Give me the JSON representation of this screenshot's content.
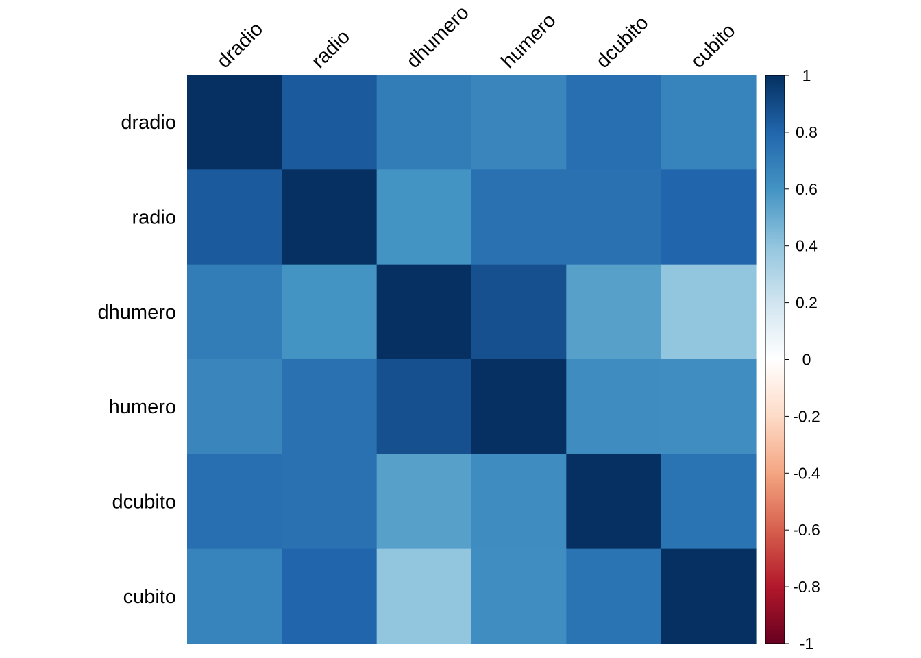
{
  "chart_data": {
    "type": "heatmap",
    "title": "",
    "variables": [
      "dradio",
      "radio",
      "dhumero",
      "humero",
      "dcubito",
      "cubito"
    ],
    "matrix": [
      [
        1.0,
        0.84,
        0.7,
        0.66,
        0.76,
        0.67
      ],
      [
        0.84,
        1.0,
        0.6,
        0.75,
        0.75,
        0.8
      ],
      [
        0.7,
        0.6,
        1.0,
        0.88,
        0.55,
        0.4
      ],
      [
        0.66,
        0.75,
        0.88,
        1.0,
        0.63,
        0.62
      ],
      [
        0.76,
        0.75,
        0.55,
        0.63,
        1.0,
        0.74
      ],
      [
        0.67,
        0.8,
        0.4,
        0.62,
        0.74,
        1.0
      ]
    ],
    "colorbar": {
      "range": [
        -1,
        1
      ],
      "ticks": [
        1,
        0.8,
        0.6,
        0.4,
        0.2,
        0,
        -0.2,
        -0.4,
        -0.6,
        -0.8,
        -1
      ],
      "tick_labels": [
        "1",
        "0.8",
        "0.6",
        "0.4",
        "0.2",
        "0",
        "-0.2",
        "-0.4",
        "-0.6",
        "-0.8",
        "-1"
      ],
      "colors": [
        "#67001F",
        "#B2182B",
        "#D6604D",
        "#F4A582",
        "#FDDBC7",
        "#FFFFFF",
        "#D1E5F0",
        "#92C5DE",
        "#4393C3",
        "#2166AC",
        "#053061"
      ]
    }
  }
}
